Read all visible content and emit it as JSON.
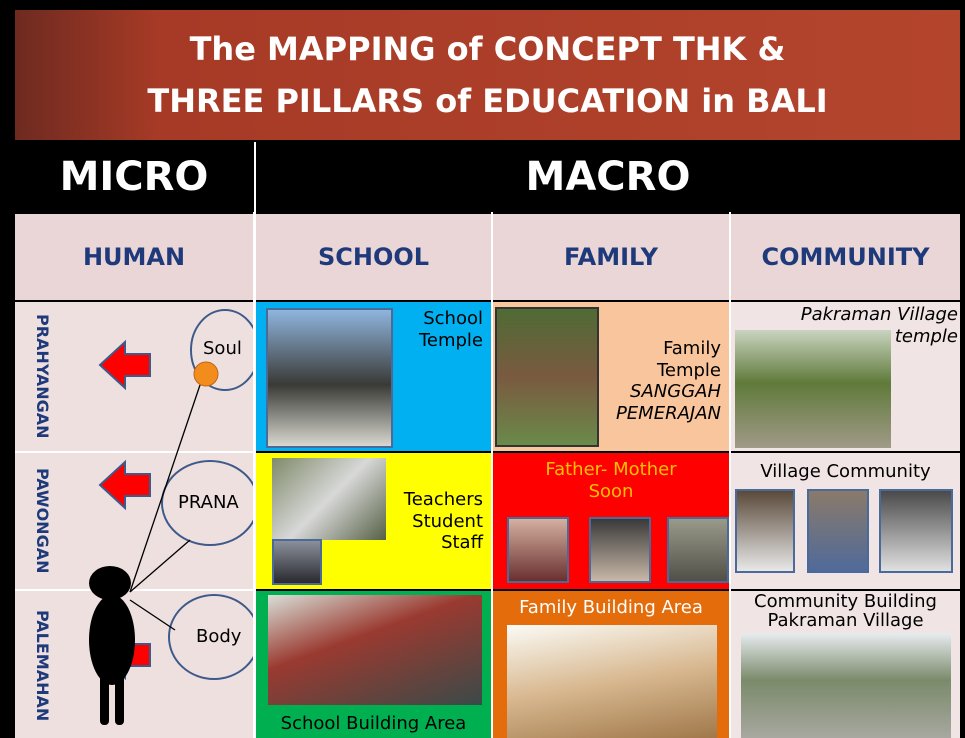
{
  "header": {
    "title": [
      "The MAPPING of CONCEPT THK &",
      "THREE PILLARS of EDUCATION in BALI"
    ]
  },
  "scale": {
    "micro": "MICRO",
    "macro": "MACRO"
  },
  "columns": [
    "HUMAN",
    "SCHOOL",
    "FAMILY",
    "COMMUNITY"
  ],
  "rows": [
    {
      "label": "PRAHYANGAN",
      "human": "Soul",
      "school": [
        "School",
        "Temple"
      ],
      "family": [
        "Family",
        "Temple",
        "SANGGAH",
        "PEMERAJAN"
      ],
      "community": [
        "Pakraman Village",
        "temple"
      ]
    },
    {
      "label": "PAWONGAN",
      "human": "PRANA",
      "school": [
        "Teachers",
        "Student",
        "Staff"
      ],
      "family": [
        "Father- Mother",
        "Soon"
      ],
      "community": [
        "Village Community"
      ]
    },
    {
      "label": "PALEMAHAN",
      "human": "Body",
      "school": [
        "School Building Area"
      ],
      "family": [
        "Family Building Area"
      ],
      "community": [
        "Community Building",
        "Pakraman Village"
      ]
    }
  ]
}
